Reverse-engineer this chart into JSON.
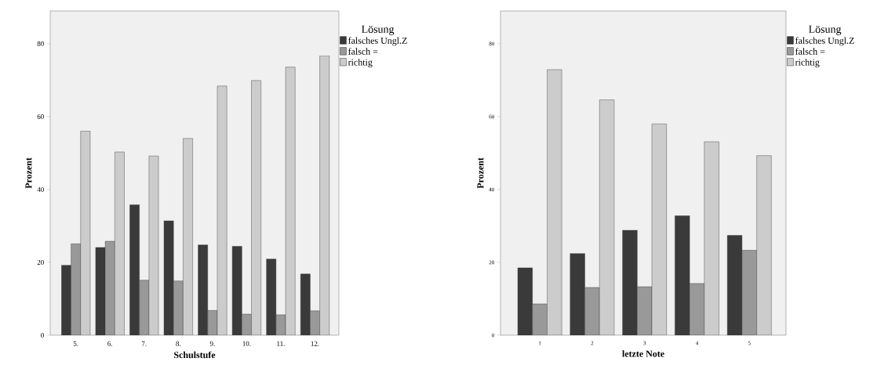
{
  "chart_data": [
    {
      "type": "bar",
      "xlabel": "Schulstufe",
      "ylabel": "Prozent",
      "legend_title": "Lösung",
      "legend": "right",
      "categories": [
        "5.",
        "6.",
        "7.",
        "8.",
        "9.",
        "10.",
        "11.",
        "12."
      ],
      "ylim": [
        0,
        89
      ],
      "yticks": [
        0,
        20,
        40,
        60,
        80
      ],
      "series": [
        {
          "name": "falsches Ungl.Z",
          "color": "#3a3a3a",
          "values": [
            19.2,
            24.1,
            35.8,
            31.4,
            24.8,
            24.4,
            20.9,
            16.8
          ]
        },
        {
          "name": "falsch =",
          "color": "#999999",
          "values": [
            25.1,
            25.8,
            15.1,
            14.9,
            6.8,
            5.8,
            5.6,
            6.7
          ]
        },
        {
          "name": "richtig",
          "color": "#cccccc",
          "values": [
            56.0,
            50.3,
            49.2,
            54.0,
            68.4,
            69.9,
            73.6,
            76.7
          ]
        }
      ]
    },
    {
      "type": "bar",
      "xlabel": "letzte Note",
      "ylabel": "Prozent",
      "legend_title": "Lösung",
      "legend": "right",
      "categories": [
        "1",
        "2",
        "3",
        "4",
        "5"
      ],
      "ylim": [
        0,
        89
      ],
      "yticks": [
        0,
        20,
        40,
        60,
        80
      ],
      "series": [
        {
          "name": "falsches Ungl.Z",
          "color": "#3a3a3a",
          "values": [
            18.5,
            22.4,
            28.8,
            32.8,
            27.4
          ]
        },
        {
          "name": "falsch =",
          "color": "#999999",
          "values": [
            8.6,
            13.1,
            13.3,
            14.2,
            23.3
          ]
        },
        {
          "name": "richtig",
          "color": "#cccccc",
          "values": [
            72.9,
            64.6,
            58.0,
            53.1,
            49.3
          ]
        }
      ]
    }
  ]
}
